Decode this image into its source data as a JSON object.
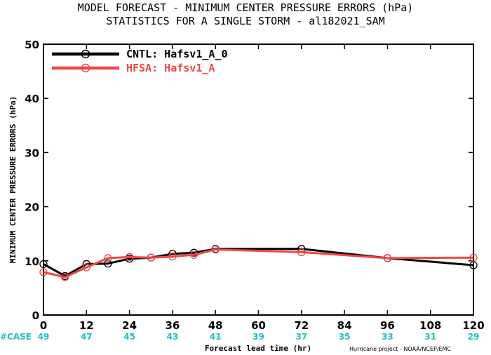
{
  "chart_data": {
    "type": "line",
    "title": "MODEL FORECAST - MINIMUM CENTER PRESSURE ERRORS (hPa)",
    "subtitle": "STATISTICS FOR A SINGLE STORM - al182021_SAM",
    "xlabel": "Forecast lead time (hr)",
    "ylabel": "MINIMUM CENTER PRESSURE ERRORS (hPa)",
    "xlim": [
      0,
      120
    ],
    "ylim": [
      0,
      50
    ],
    "x_ticks": [
      0,
      12,
      24,
      36,
      48,
      60,
      72,
      84,
      96,
      108,
      120
    ],
    "y_ticks": [
      0,
      10,
      20,
      30,
      40,
      50
    ],
    "grid": false,
    "legend_position": "top-left",
    "series": [
      {
        "name": "CNTL: Hafsv1_A_0",
        "color": "#000000",
        "x": [
          0,
          6,
          12,
          18,
          24,
          30,
          36,
          42,
          48,
          72,
          96,
          120
        ],
        "y": [
          9.4,
          7.2,
          9.4,
          9.5,
          10.4,
          10.6,
          11.3,
          11.5,
          12.2,
          12.2,
          10.5,
          9.2
        ]
      },
      {
        "name": "HFSA: Hafsv1_A",
        "color": "#f04646",
        "x": [
          0,
          6,
          12,
          18,
          24,
          30,
          36,
          42,
          48,
          72,
          96,
          120
        ],
        "y": [
          7.9,
          7.0,
          8.8,
          10.5,
          10.7,
          10.6,
          10.8,
          11.1,
          12.1,
          11.6,
          10.5,
          10.6
        ]
      }
    ],
    "case_label": "#CASE",
    "case_color": "#19c3c3",
    "cases": {
      "x": [
        0,
        12,
        24,
        36,
        48,
        60,
        72,
        84,
        96,
        108,
        120
      ],
      "counts": [
        "49",
        "47",
        "45",
        "43",
        "41",
        "39",
        "37",
        "35",
        "33",
        "31",
        "29"
      ]
    },
    "credit": "Hurricane project - NOAA/NCEP/EMC"
  }
}
